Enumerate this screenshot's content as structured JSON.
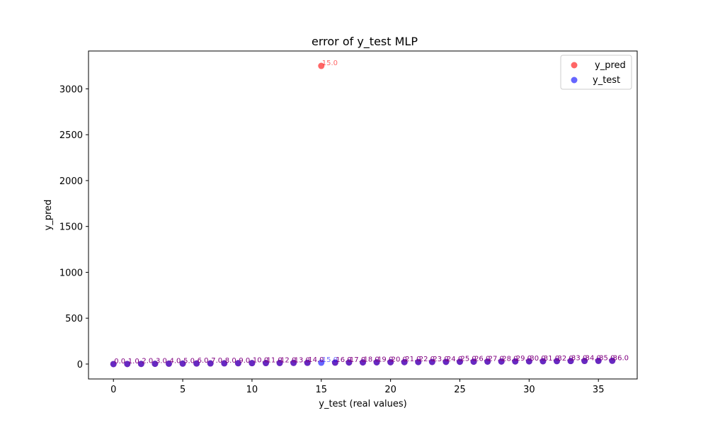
{
  "chart_data": {
    "type": "scatter",
    "title": "error of y_test MLP",
    "xlabel": "y_test (real values)",
    "ylabel": "y_pred",
    "xlim": [
      -1.8,
      37.8
    ],
    "ylim": [
      -162.5,
      3412.5
    ],
    "xticks": [
      0,
      5,
      10,
      15,
      20,
      25,
      30,
      35
    ],
    "yticks": [
      0,
      500,
      1000,
      1500,
      2000,
      2500,
      3000
    ],
    "legend_position": "upper-right",
    "grid": false,
    "series": [
      {
        "name": "y_pred",
        "color": "#ff0000",
        "x": [
          0,
          1,
          2,
          3,
          4,
          5,
          6,
          7,
          8,
          9,
          10,
          11,
          12,
          13,
          14,
          15,
          16,
          17,
          18,
          19,
          20,
          21,
          22,
          23,
          24,
          25,
          26,
          27,
          28,
          29,
          30,
          31,
          32,
          33,
          34,
          35,
          36
        ],
        "y": [
          0,
          1,
          2,
          3,
          4,
          5,
          6,
          7,
          8,
          9,
          10,
          11,
          12,
          13,
          14,
          3250,
          16,
          17,
          18,
          19,
          20,
          21,
          22,
          23,
          24,
          25,
          26,
          27,
          28,
          29,
          30,
          31,
          32,
          33,
          34,
          35,
          36
        ]
      },
      {
        "name": "y_test",
        "color": "#0000ff",
        "x": [
          0,
          1,
          2,
          3,
          4,
          5,
          6,
          7,
          8,
          9,
          10,
          11,
          12,
          13,
          14,
          15,
          16,
          17,
          18,
          19,
          20,
          21,
          22,
          23,
          24,
          25,
          26,
          27,
          28,
          29,
          30,
          31,
          32,
          33,
          34,
          35,
          36
        ],
        "y": [
          0,
          1,
          2,
          3,
          4,
          5,
          6,
          7,
          8,
          9,
          10,
          11,
          12,
          13,
          14,
          15,
          16,
          17,
          18,
          19,
          20,
          21,
          22,
          23,
          24,
          25,
          26,
          27,
          28,
          29,
          30,
          31,
          32,
          33,
          34,
          35,
          36
        ]
      }
    ],
    "annotations": [
      {
        "text": "0.0",
        "x": 0,
        "y": 0,
        "color": "purple"
      },
      {
        "text": "1.0",
        "x": 1,
        "y": 1,
        "color": "purple"
      },
      {
        "text": "2.0",
        "x": 2,
        "y": 2,
        "color": "purple"
      },
      {
        "text": "3.0",
        "x": 3,
        "y": 3,
        "color": "purple"
      },
      {
        "text": "4.0",
        "x": 4,
        "y": 4,
        "color": "purple"
      },
      {
        "text": "5.0",
        "x": 5,
        "y": 5,
        "color": "purple"
      },
      {
        "text": "6.0",
        "x": 6,
        "y": 6,
        "color": "purple"
      },
      {
        "text": "7.0",
        "x": 7,
        "y": 7,
        "color": "purple"
      },
      {
        "text": "8.0",
        "x": 8,
        "y": 8,
        "color": "purple"
      },
      {
        "text": "9.0",
        "x": 9,
        "y": 9,
        "color": "purple"
      },
      {
        "text": "10.0",
        "x": 10,
        "y": 10,
        "color": "purple"
      },
      {
        "text": "11.0",
        "x": 11,
        "y": 11,
        "color": "purple"
      },
      {
        "text": "12.0",
        "x": 12,
        "y": 12,
        "color": "purple"
      },
      {
        "text": "13.0",
        "x": 13,
        "y": 13,
        "color": "purple"
      },
      {
        "text": "14.0",
        "x": 14,
        "y": 14,
        "color": "purple"
      },
      {
        "text": "15.0",
        "x": 15,
        "y": 3250,
        "color": "red"
      },
      {
        "text": "15.0",
        "x": 15,
        "y": 15,
        "color": "blue"
      },
      {
        "text": "16.0",
        "x": 16,
        "y": 16,
        "color": "purple"
      },
      {
        "text": "17.0",
        "x": 17,
        "y": 17,
        "color": "purple"
      },
      {
        "text": "18.0",
        "x": 18,
        "y": 18,
        "color": "purple"
      },
      {
        "text": "19.0",
        "x": 19,
        "y": 19,
        "color": "purple"
      },
      {
        "text": "20.0",
        "x": 20,
        "y": 20,
        "color": "purple"
      },
      {
        "text": "21.0",
        "x": 21,
        "y": 21,
        "color": "purple"
      },
      {
        "text": "22.0",
        "x": 22,
        "y": 22,
        "color": "purple"
      },
      {
        "text": "23.0",
        "x": 23,
        "y": 23,
        "color": "purple"
      },
      {
        "text": "24.0",
        "x": 24,
        "y": 24,
        "color": "purple"
      },
      {
        "text": "25.0",
        "x": 25,
        "y": 25,
        "color": "purple"
      },
      {
        "text": "26.0",
        "x": 26,
        "y": 26,
        "color": "purple"
      },
      {
        "text": "27.0",
        "x": 27,
        "y": 27,
        "color": "purple"
      },
      {
        "text": "28.0",
        "x": 28,
        "y": 28,
        "color": "purple"
      },
      {
        "text": "29.0",
        "x": 29,
        "y": 29,
        "color": "purple"
      },
      {
        "text": "30.0",
        "x": 30,
        "y": 30,
        "color": "purple"
      },
      {
        "text": "31.0",
        "x": 31,
        "y": 31,
        "color": "purple"
      },
      {
        "text": "32.0",
        "x": 32,
        "y": 32,
        "color": "purple"
      },
      {
        "text": "33.0",
        "x": 33,
        "y": 33,
        "color": "purple"
      },
      {
        "text": "34.0",
        "x": 34,
        "y": 34,
        "color": "purple"
      },
      {
        "text": "35.0",
        "x": 35,
        "y": 35,
        "color": "purple"
      },
      {
        "text": "36.0",
        "x": 36,
        "y": 36,
        "color": "purple"
      }
    ]
  }
}
